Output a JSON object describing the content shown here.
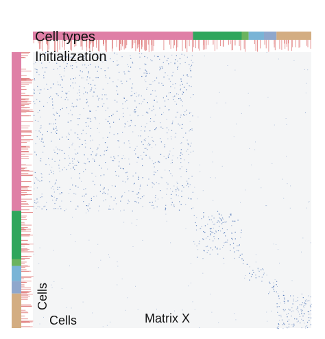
{
  "labels": {
    "cell_types": "Cell types",
    "initialization": "Initialization",
    "cells_x": "Cells",
    "cells_y": "Cells",
    "matrix": "Matrix X"
  },
  "colors": {
    "background_matrix": "#f4f5f6",
    "dots": "#3a66b0",
    "ticks": "#e07c7c",
    "groups": [
      "#df7fa6",
      "#2fa65c",
      "#6bb35e",
      "#79b4d6",
      "#8fa7cc",
      "#d3ad82"
    ]
  },
  "groups": [
    {
      "fraction": 0.575,
      "density": 0.3
    },
    {
      "fraction": 0.175,
      "density": 0.45
    },
    {
      "fraction": 0.025,
      "density": 0.55
    },
    {
      "fraction": 0.055,
      "density": 0.75
    },
    {
      "fraction": 0.045,
      "density": 0.85
    },
    {
      "fraction": 0.125,
      "density": 0.8
    }
  ]
}
